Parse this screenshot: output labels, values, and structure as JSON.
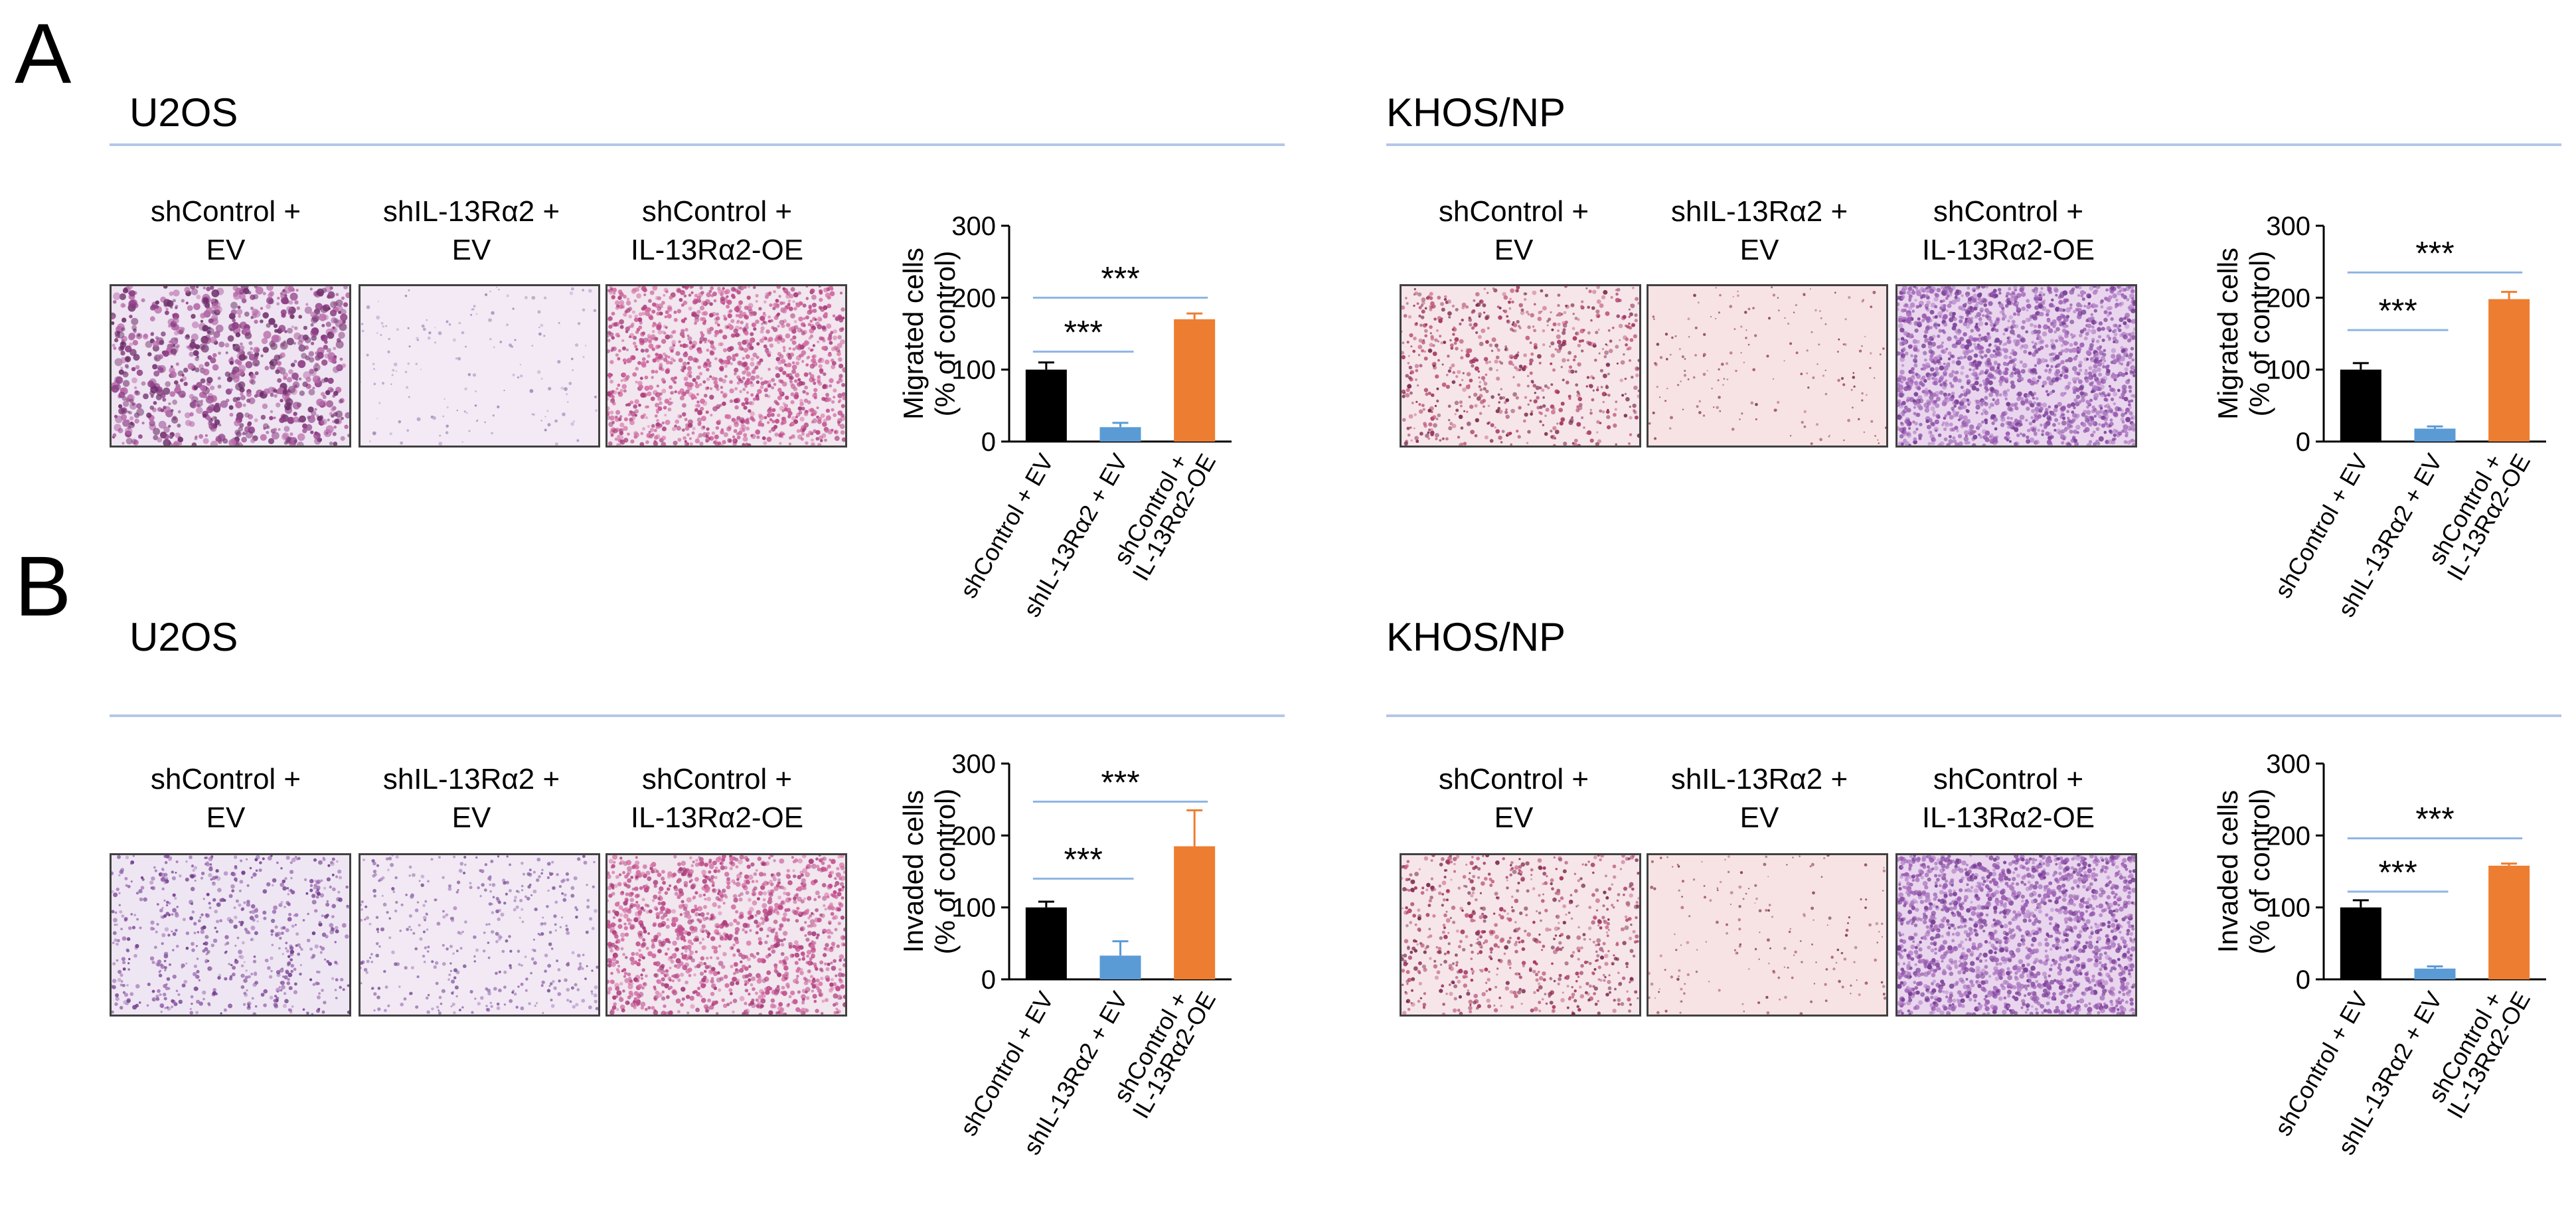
{
  "colors": {
    "ctrl": "#000000",
    "knock": "#5b9bd5",
    "over": "#ed7d31",
    "rule": "#b4c7e7",
    "sig": "#8eb4e3"
  },
  "panels": [
    {
      "letter": "A",
      "cells": [
        {
          "title": "U2OS",
          "images": [
            {
              "label": "shControl +\nEV",
              "tint": "dense-magenta-purple"
            },
            {
              "label": "shIL-13Rα2 +\nEV",
              "tint": "pale-lavender"
            },
            {
              "label": "shControl +\nIL-13Rα2-OE",
              "tint": "dense-pink"
            }
          ]
        },
        {
          "title": "KHOS/NP",
          "images": [
            {
              "label": "shControl +\nEV",
              "tint": "scattered-pink"
            },
            {
              "label": "shIL-13Rα2 +\nEV",
              "tint": "pale-pink"
            },
            {
              "label": "shControl +\nIL-13Rα2-OE",
              "tint": "dense-purple"
            }
          ]
        }
      ]
    },
    {
      "letter": "B",
      "cells": [
        {
          "title": "U2OS",
          "images": [
            {
              "label": "shControl +\nEV",
              "tint": "scattered-purple"
            },
            {
              "label": "shIL-13Rα2 +\nEV",
              "tint": "scattered-lavender"
            },
            {
              "label": "shControl +\nIL-13Rα2-OE",
              "tint": "dense-pink"
            }
          ]
        },
        {
          "title": "KHOS/NP",
          "images": [
            {
              "label": "shControl +\nEV",
              "tint": "scattered-pink"
            },
            {
              "label": "shIL-13Rα2 +\nEV",
              "tint": "pale-pink"
            },
            {
              "label": "shControl +\nIL-13Rα2-OE",
              "tint": "dense-purple"
            }
          ]
        }
      ]
    }
  ],
  "chart_data": [
    {
      "type": "bar",
      "panel": "A",
      "cell": "U2OS",
      "categories": [
        "shControl + EV",
        "shIL-13Rα2 + EV",
        "shControl +\nIL-13Rα2-OE"
      ],
      "values": [
        100,
        20,
        170
      ],
      "errors": [
        10,
        6,
        8
      ],
      "ylabel": "Migrated cells\n(% of control)",
      "ylim": [
        0,
        300
      ],
      "yticks": [
        0,
        100,
        200,
        300
      ],
      "significance": [
        {
          "from": 0,
          "to": 1,
          "y": 125,
          "label": "***"
        },
        {
          "from": 0,
          "to": 2,
          "y": 200,
          "label": "***"
        }
      ]
    },
    {
      "type": "bar",
      "panel": "A",
      "cell": "KHOS/NP",
      "categories": [
        "shControl + EV",
        "shIL-13Rα2 + EV",
        "shControl +\nIL-13Rα2-OE"
      ],
      "values": [
        100,
        18,
        198
      ],
      "errors": [
        9,
        3,
        10
      ],
      "ylabel": "Migrated cells\n(% of control)",
      "ylim": [
        0,
        300
      ],
      "yticks": [
        0,
        100,
        200,
        300
      ],
      "significance": [
        {
          "from": 0,
          "to": 1,
          "y": 155,
          "label": "***"
        },
        {
          "from": 0,
          "to": 2,
          "y": 235,
          "label": "***"
        }
      ]
    },
    {
      "type": "bar",
      "panel": "B",
      "cell": "U2OS",
      "categories": [
        "shControl + EV",
        "shIL-13Rα2 + EV",
        "shControl +\nIL-13Rα2-OE"
      ],
      "values": [
        100,
        33,
        185
      ],
      "errors": [
        8,
        20,
        50
      ],
      "ylabel": "Invaded cells\n(% of control)",
      "ylim": [
        0,
        300
      ],
      "yticks": [
        0,
        100,
        200,
        300
      ],
      "significance": [
        {
          "from": 0,
          "to": 1,
          "y": 140,
          "label": "***"
        },
        {
          "from": 0,
          "to": 2,
          "y": 247,
          "label": "***"
        }
      ]
    },
    {
      "type": "bar",
      "panel": "B",
      "cell": "KHOS/NP",
      "categories": [
        "shControl + EV",
        "shIL-13Rα2 + EV",
        "shControl +\nIL-13Rα2-OE"
      ],
      "values": [
        100,
        15,
        158
      ],
      "errors": [
        10,
        3,
        3
      ],
      "ylabel": "Invaded cells\n(% of control)",
      "ylim": [
        0,
        300
      ],
      "yticks": [
        0,
        100,
        200,
        300
      ],
      "significance": [
        {
          "from": 0,
          "to": 1,
          "y": 122,
          "label": "***"
        },
        {
          "from": 0,
          "to": 2,
          "y": 196,
          "label": "***"
        }
      ]
    }
  ]
}
